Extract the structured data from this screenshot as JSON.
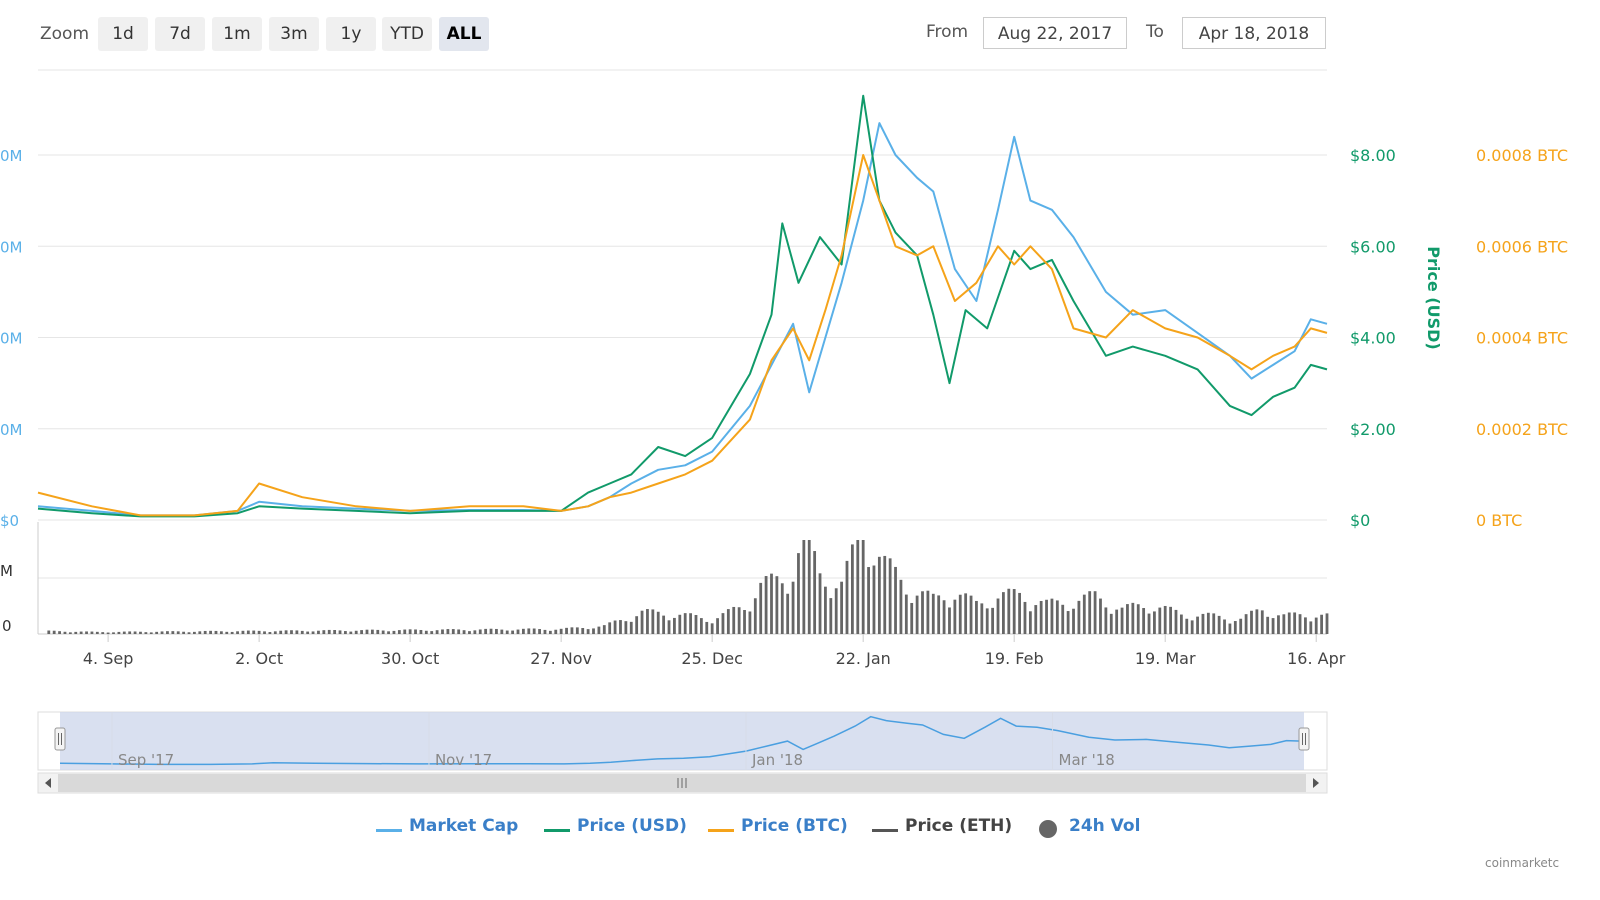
{
  "toolbar": {
    "zoom_label": "Zoom",
    "zoom_buttons": [
      "1d",
      "7d",
      "1m",
      "3m",
      "1y",
      "YTD",
      "ALL"
    ],
    "active_zoom": "ALL",
    "from_label": "From",
    "from_value": "Aug 22, 2017",
    "to_label": "To",
    "to_value": "Apr 18, 2018"
  },
  "credit": "coinmarketc",
  "colors": {
    "market_cap": "#5ab0e8",
    "price_usd": "#119a6a",
    "price_btc": "#f5a31a",
    "price_eth": "#555555",
    "volume": "#666666",
    "grid": "#e6e6e6",
    "navigator_fill": "#ccd6eb",
    "navigator_line": "#4a9fe0"
  },
  "chart_data": {
    "type": "line",
    "title": "",
    "x_tick_labels": [
      "4. Sep",
      "2. Oct",
      "30. Oct",
      "27. Nov",
      "25. Dec",
      "22. Jan",
      "19. Feb",
      "19. Mar",
      "16. Apr"
    ],
    "x_tick_dates": [
      "2017-09-04",
      "2017-10-02",
      "2017-10-30",
      "2017-11-27",
      "2017-12-25",
      "2018-01-22",
      "2018-02-19",
      "2018-03-19",
      "2018-04-16"
    ],
    "x_range": [
      "2017-08-22",
      "2018-04-18"
    ],
    "y_axes": {
      "market_cap": {
        "ticks": [
          "0M",
          "0M",
          "0M",
          "0M",
          "$0"
        ],
        "label": "",
        "position": "left"
      },
      "price_usd": {
        "ticks": [
          "$8.00",
          "$6.00",
          "$4.00",
          "$2.00",
          "$0"
        ],
        "label": "Price (USD)",
        "range": [
          0,
          8
        ],
        "position": "right"
      },
      "price_btc": {
        "ticks": [
          "0.0008 BTC",
          "0.0006 BTC",
          "0.0004 BTC",
          "0.0002 BTC",
          "0 BTC"
        ],
        "range": [
          0,
          0.0008
        ],
        "position": "right"
      },
      "volume": {
        "ticks": [
          "M",
          "0"
        ],
        "position": "left"
      }
    },
    "series": [
      {
        "name": "Market Cap",
        "axis": "price_usd",
        "points": [
          [
            "2017-08-22",
            0.3
          ],
          [
            "2017-09-01",
            0.2
          ],
          [
            "2017-09-10",
            0.1
          ],
          [
            "2017-09-20",
            0.1
          ],
          [
            "2017-09-28",
            0.2
          ],
          [
            "2017-10-02",
            0.4
          ],
          [
            "2017-10-10",
            0.3
          ],
          [
            "2017-10-20",
            0.25
          ],
          [
            "2017-10-30",
            0.2
          ],
          [
            "2017-11-10",
            0.22
          ],
          [
            "2017-11-20",
            0.22
          ],
          [
            "2017-11-27",
            0.2
          ],
          [
            "2017-12-02",
            0.3
          ],
          [
            "2017-12-06",
            0.5
          ],
          [
            "2017-12-10",
            0.8
          ],
          [
            "2017-12-15",
            1.1
          ],
          [
            "2017-12-20",
            1.2
          ],
          [
            "2017-12-25",
            1.5
          ],
          [
            "2018-01-01",
            2.5
          ],
          [
            "2018-01-05",
            3.4
          ],
          [
            "2018-01-09",
            4.3
          ],
          [
            "2018-01-12",
            2.8
          ],
          [
            "2018-01-15",
            4.0
          ],
          [
            "2018-01-18",
            5.2
          ],
          [
            "2018-01-22",
            7.0
          ],
          [
            "2018-01-25",
            8.7
          ],
          [
            "2018-01-28",
            8.0
          ],
          [
            "2018-02-01",
            7.5
          ],
          [
            "2018-02-04",
            7.2
          ],
          [
            "2018-02-08",
            5.5
          ],
          [
            "2018-02-12",
            4.8
          ],
          [
            "2018-02-16",
            6.8
          ],
          [
            "2018-02-19",
            8.4
          ],
          [
            "2018-02-22",
            7.0
          ],
          [
            "2018-02-26",
            6.8
          ],
          [
            "2018-03-02",
            6.2
          ],
          [
            "2018-03-08",
            5.0
          ],
          [
            "2018-03-13",
            4.5
          ],
          [
            "2018-03-19",
            4.6
          ],
          [
            "2018-03-25",
            4.1
          ],
          [
            "2018-03-31",
            3.6
          ],
          [
            "2018-04-04",
            3.1
          ],
          [
            "2018-04-08",
            3.4
          ],
          [
            "2018-04-12",
            3.7
          ],
          [
            "2018-04-15",
            4.4
          ],
          [
            "2018-04-18",
            4.3
          ]
        ]
      },
      {
        "name": "Price (USD)",
        "axis": "price_usd",
        "points": [
          [
            "2017-08-22",
            0.25
          ],
          [
            "2017-09-01",
            0.15
          ],
          [
            "2017-09-10",
            0.08
          ],
          [
            "2017-09-20",
            0.08
          ],
          [
            "2017-09-28",
            0.15
          ],
          [
            "2017-10-02",
            0.3
          ],
          [
            "2017-10-10",
            0.25
          ],
          [
            "2017-10-20",
            0.2
          ],
          [
            "2017-10-30",
            0.15
          ],
          [
            "2017-11-10",
            0.2
          ],
          [
            "2017-11-20",
            0.2
          ],
          [
            "2017-11-27",
            0.2
          ],
          [
            "2017-12-02",
            0.6
          ],
          [
            "2017-12-06",
            0.8
          ],
          [
            "2017-12-10",
            1.0
          ],
          [
            "2017-12-15",
            1.6
          ],
          [
            "2017-12-20",
            1.4
          ],
          [
            "2017-12-25",
            1.8
          ],
          [
            "2018-01-01",
            3.2
          ],
          [
            "2018-01-05",
            4.5
          ],
          [
            "2018-01-07",
            6.5
          ],
          [
            "2018-01-10",
            5.2
          ],
          [
            "2018-01-14",
            6.2
          ],
          [
            "2018-01-18",
            5.6
          ],
          [
            "2018-01-22",
            9.3
          ],
          [
            "2018-01-25",
            7.0
          ],
          [
            "2018-01-28",
            6.3
          ],
          [
            "2018-02-01",
            5.8
          ],
          [
            "2018-02-04",
            4.5
          ],
          [
            "2018-02-07",
            3.0
          ],
          [
            "2018-02-10",
            4.6
          ],
          [
            "2018-02-14",
            4.2
          ],
          [
            "2018-02-19",
            5.9
          ],
          [
            "2018-02-22",
            5.5
          ],
          [
            "2018-02-26",
            5.7
          ],
          [
            "2018-03-02",
            4.8
          ],
          [
            "2018-03-08",
            3.6
          ],
          [
            "2018-03-13",
            3.8
          ],
          [
            "2018-03-19",
            3.6
          ],
          [
            "2018-03-25",
            3.3
          ],
          [
            "2018-03-31",
            2.5
          ],
          [
            "2018-04-04",
            2.3
          ],
          [
            "2018-04-08",
            2.7
          ],
          [
            "2018-04-12",
            2.9
          ],
          [
            "2018-04-15",
            3.4
          ],
          [
            "2018-04-18",
            3.3
          ]
        ]
      },
      {
        "name": "Price (BTC)",
        "axis": "price_btc",
        "points": [
          [
            "2017-08-22",
            6e-05
          ],
          [
            "2017-09-01",
            3e-05
          ],
          [
            "2017-09-10",
            1e-05
          ],
          [
            "2017-09-20",
            1e-05
          ],
          [
            "2017-09-28",
            2e-05
          ],
          [
            "2017-10-02",
            8e-05
          ],
          [
            "2017-10-10",
            5e-05
          ],
          [
            "2017-10-20",
            3e-05
          ],
          [
            "2017-10-30",
            2e-05
          ],
          [
            "2017-11-10",
            3e-05
          ],
          [
            "2017-11-20",
            3e-05
          ],
          [
            "2017-11-27",
            2e-05
          ],
          [
            "2017-12-02",
            3e-05
          ],
          [
            "2017-12-06",
            5e-05
          ],
          [
            "2017-12-10",
            6e-05
          ],
          [
            "2017-12-15",
            8e-05
          ],
          [
            "2017-12-20",
            0.0001
          ],
          [
            "2017-12-25",
            0.00013
          ],
          [
            "2018-01-01",
            0.00022
          ],
          [
            "2018-01-05",
            0.00035
          ],
          [
            "2018-01-09",
            0.00042
          ],
          [
            "2018-01-12",
            0.00035
          ],
          [
            "2018-01-15",
            0.00046
          ],
          [
            "2018-01-18",
            0.00058
          ],
          [
            "2018-01-22",
            0.0008
          ],
          [
            "2018-01-25",
            0.0007
          ],
          [
            "2018-01-28",
            0.0006
          ],
          [
            "2018-02-01",
            0.00058
          ],
          [
            "2018-02-04",
            0.0006
          ],
          [
            "2018-02-08",
            0.00048
          ],
          [
            "2018-02-12",
            0.00052
          ],
          [
            "2018-02-16",
            0.0006
          ],
          [
            "2018-02-19",
            0.00056
          ],
          [
            "2018-02-22",
            0.0006
          ],
          [
            "2018-02-26",
            0.00055
          ],
          [
            "2018-03-02",
            0.00042
          ],
          [
            "2018-03-08",
            0.0004
          ],
          [
            "2018-03-13",
            0.00046
          ],
          [
            "2018-03-19",
            0.00042
          ],
          [
            "2018-03-25",
            0.0004
          ],
          [
            "2018-03-31",
            0.00036
          ],
          [
            "2018-04-04",
            0.00033
          ],
          [
            "2018-04-08",
            0.00036
          ],
          [
            "2018-04-12",
            0.00038
          ],
          [
            "2018-04-15",
            0.00042
          ],
          [
            "2018-04-18",
            0.00041
          ]
        ]
      }
    ],
    "volume": {
      "name": "24h Vol",
      "points": [
        [
          "2017-08-24",
          0.03
        ],
        [
          "2017-09-02",
          0.02
        ],
        [
          "2017-11-27",
          0.05
        ],
        [
          "2017-12-05",
          0.08
        ],
        [
          "2017-12-12",
          0.22
        ],
        [
          "2017-12-18",
          0.2
        ],
        [
          "2017-12-25",
          0.15
        ],
        [
          "2017-12-31",
          0.28
        ],
        [
          "2018-01-03",
          0.5
        ],
        [
          "2018-01-08",
          0.55
        ],
        [
          "2018-01-11",
          1.0
        ],
        [
          "2018-01-14",
          0.6
        ],
        [
          "2018-01-18",
          0.5
        ],
        [
          "2018-01-22",
          1.05
        ],
        [
          "2018-01-26",
          0.7
        ],
        [
          "2018-01-31",
          0.45
        ],
        [
          "2018-02-04",
          0.35
        ],
        [
          "2018-02-08",
          0.42
        ],
        [
          "2018-02-12",
          0.3
        ],
        [
          "2018-02-16",
          0.38
        ],
        [
          "2018-02-20",
          0.4
        ],
        [
          "2018-02-25",
          0.3
        ],
        [
          "2018-03-01",
          0.32
        ],
        [
          "2018-03-06",
          0.38
        ],
        [
          "2018-03-11",
          0.25
        ],
        [
          "2018-03-16",
          0.3
        ],
        [
          "2018-03-22",
          0.2
        ],
        [
          "2018-03-28",
          0.18
        ],
        [
          "2018-04-02",
          0.15
        ],
        [
          "2018-04-06",
          0.25
        ],
        [
          "2018-04-10",
          0.18
        ],
        [
          "2018-04-14",
          0.2
        ],
        [
          "2018-04-18",
          0.18
        ]
      ]
    },
    "navigator": {
      "labels": [
        "Sep '17",
        "Nov '17",
        "Jan '18",
        "Mar '18"
      ],
      "label_dates": [
        "2017-09-01",
        "2017-11-01",
        "2018-01-01",
        "2018-03-01"
      ]
    },
    "legend": [
      {
        "name": "Market Cap",
        "key": "market_cap",
        "marker": "line"
      },
      {
        "name": "Price (USD)",
        "key": "price_usd",
        "marker": "line"
      },
      {
        "name": "Price (BTC)",
        "key": "price_btc",
        "marker": "line"
      },
      {
        "name": "Price (ETH)",
        "key": "price_eth",
        "marker": "line"
      },
      {
        "name": "24h Vol",
        "key": "volume",
        "marker": "dot"
      }
    ],
    "legend_position": "bottom-center",
    "grid": true
  }
}
